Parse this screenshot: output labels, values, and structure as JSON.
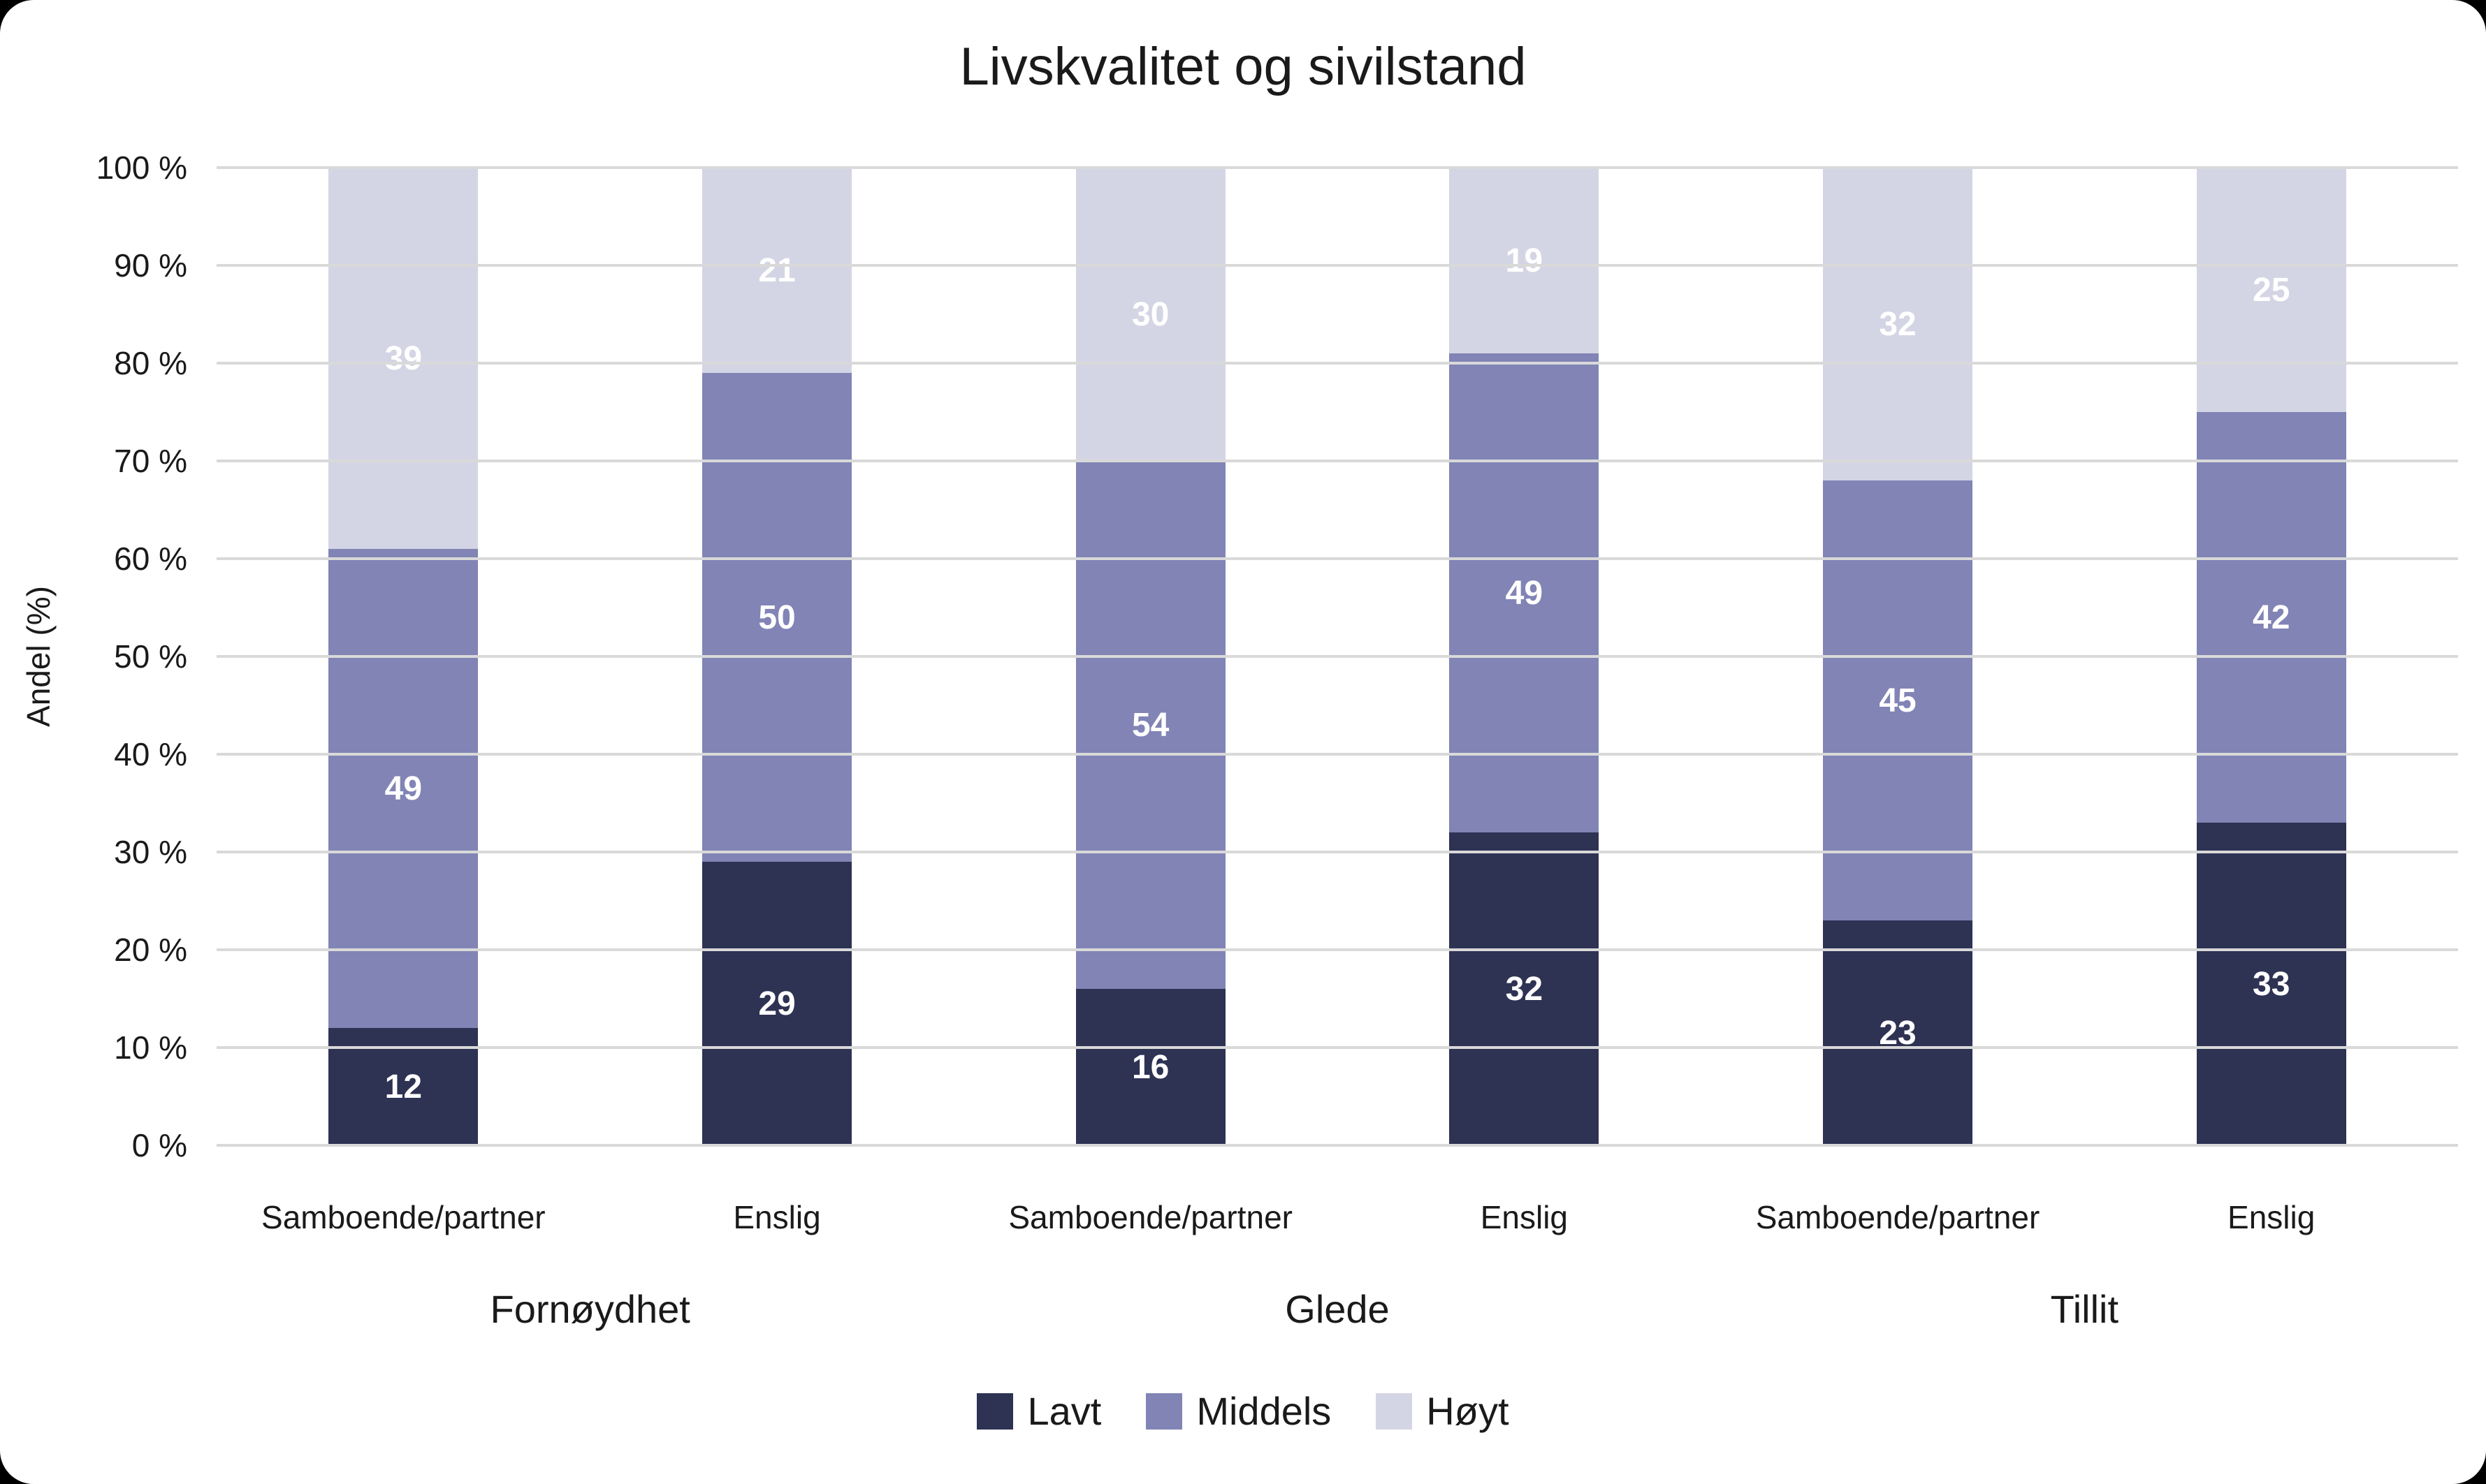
{
  "title": "Livskvalitet og sivilstand",
  "y_axis": {
    "label": "Andel (%)",
    "ticks": [
      "100 %",
      "90 %",
      "80 %",
      "70 %",
      "60 %",
      "50 %",
      "40 %",
      "30 %",
      "20 %",
      "10 %",
      "0 %"
    ]
  },
  "chart_data": {
    "type": "bar",
    "stacked": true,
    "title": "Livskvalitet og sivilstand",
    "xlabel": "",
    "ylabel": "Andel (%)",
    "ylim": [
      0,
      100
    ],
    "y_tick_step": 10,
    "grid": true,
    "legend_position": "bottom",
    "groups": [
      "Fornøydhet",
      "Glede",
      "Tillit"
    ],
    "categories": [
      "Samboende/partner",
      "Enslig",
      "Samboende/partner",
      "Enslig",
      "Samboende/partner",
      "Enslig"
    ],
    "series": [
      {
        "name": "Lavt",
        "color": "#2E3253",
        "values": [
          12,
          29,
          16,
          32,
          23,
          33
        ]
      },
      {
        "name": "Middels",
        "color": "#8184B5",
        "values": [
          49,
          50,
          54,
          49,
          45,
          42
        ]
      },
      {
        "name": "Høyt",
        "color": "#D4D5E4",
        "values": [
          39,
          21,
          30,
          19,
          32,
          25
        ]
      }
    ]
  },
  "colors": {
    "page_background": "#000000",
    "card_background": "#FFFFFF",
    "gridline": "#D9D9D9",
    "axis_text": "#1A1A1A",
    "bar_label": "#FFFFFF"
  }
}
